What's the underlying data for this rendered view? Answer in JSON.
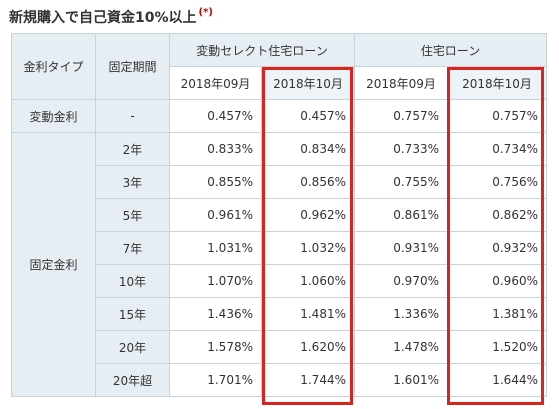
{
  "title": "新規購入で自己資金10%以上",
  "title_mark": "(*)",
  "header": {
    "rate_type": "金利タイプ",
    "fixed_period": "固定期間",
    "group1": "変動セレクト住宅ローン",
    "group2": "住宅ローン",
    "months": [
      "2018年09月",
      "2018年10月",
      "2018年09月",
      "2018年10月"
    ]
  },
  "variable": {
    "label": "変動金利",
    "period": "-",
    "values": [
      "0.457%",
      "0.457%",
      "0.757%",
      "0.757%"
    ]
  },
  "fixed": {
    "label": "固定金利",
    "rows": [
      {
        "period": "2年",
        "values": [
          "0.833%",
          "0.834%",
          "0.733%",
          "0.734%"
        ]
      },
      {
        "period": "3年",
        "values": [
          "0.855%",
          "0.856%",
          "0.755%",
          "0.756%"
        ]
      },
      {
        "period": "5年",
        "values": [
          "0.961%",
          "0.962%",
          "0.861%",
          "0.862%"
        ]
      },
      {
        "period": "7年",
        "values": [
          "1.031%",
          "1.032%",
          "0.931%",
          "0.932%"
        ]
      },
      {
        "period": "10年",
        "values": [
          "1.070%",
          "1.060%",
          "0.970%",
          "0.960%"
        ]
      },
      {
        "period": "15年",
        "values": [
          "1.436%",
          "1.481%",
          "1.336%",
          "1.381%"
        ]
      },
      {
        "period": "20年",
        "values": [
          "1.578%",
          "1.620%",
          "1.478%",
          "1.520%"
        ]
      },
      {
        "period": "20年超",
        "values": [
          "1.701%",
          "1.744%",
          "1.601%",
          "1.644%"
        ]
      }
    ]
  },
  "colors": {
    "header_bg": "#e6eef4",
    "border": "#c8d2da",
    "highlight": "#d9251d",
    "mark": "#cc0000"
  }
}
